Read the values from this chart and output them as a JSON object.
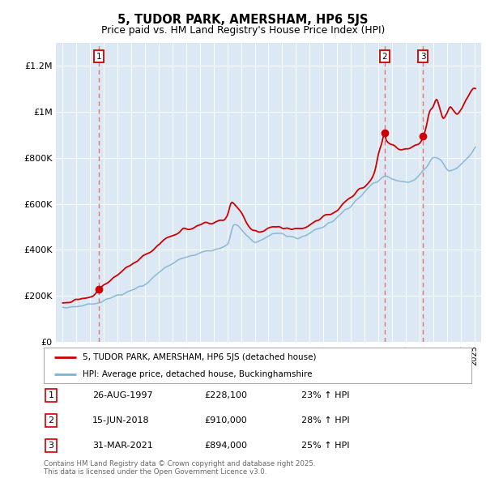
{
  "title": "5, TUDOR PARK, AMERSHAM, HP6 5JS",
  "subtitle": "Price paid vs. HM Land Registry's House Price Index (HPI)",
  "legend_line1": "5, TUDOR PARK, AMERSHAM, HP6 5JS (detached house)",
  "legend_line2": "HPI: Average price, detached house, Buckinghamshire",
  "footer": "Contains HM Land Registry data © Crown copyright and database right 2025.\nThis data is licensed under the Open Government Licence v3.0.",
  "transactions": [
    {
      "num": "1",
      "date": "26-AUG-1997",
      "price": "£228,100",
      "hpi": "23% ↑ HPI",
      "year": 1997.65,
      "price_val": 228100
    },
    {
      "num": "2",
      "date": "15-JUN-2018",
      "price": "£910,000",
      "hpi": "28% ↑ HPI",
      "year": 2018.45,
      "price_val": 910000
    },
    {
      "num": "3",
      "date": "31-MAR-2021",
      "price": "£894,000",
      "hpi": "25% ↑ HPI",
      "year": 2021.25,
      "price_val": 894000
    }
  ],
  "xlim": [
    1994.5,
    2025.5
  ],
  "ylim": [
    0,
    1300000
  ],
  "yticks": [
    0,
    200000,
    400000,
    600000,
    800000,
    1000000,
    1200000
  ],
  "ytick_labels": [
    "£0",
    "£200K",
    "£400K",
    "£600K",
    "£800K",
    "£1M",
    "£1.2M"
  ],
  "background_color": "#dce9f5",
  "red_line_color": "#cc0000",
  "blue_line_color": "#7fb3d3",
  "vline_color": "#e87070",
  "grid_color": "#ffffff",
  "marker_color": "#cc0000",
  "hpi_keypoints": [
    [
      1995.0,
      148000
    ],
    [
      1996.0,
      155000
    ],
    [
      1997.0,
      163000
    ],
    [
      1998.0,
      180000
    ],
    [
      1999.0,
      200000
    ],
    [
      2000.0,
      220000
    ],
    [
      2001.0,
      250000
    ],
    [
      2002.0,
      300000
    ],
    [
      2003.0,
      340000
    ],
    [
      2004.0,
      370000
    ],
    [
      2005.0,
      385000
    ],
    [
      2006.0,
      400000
    ],
    [
      2007.0,
      420000
    ],
    [
      2007.5,
      510000
    ],
    [
      2008.0,
      490000
    ],
    [
      2008.5,
      460000
    ],
    [
      2009.0,
      430000
    ],
    [
      2009.5,
      440000
    ],
    [
      2010.0,
      460000
    ],
    [
      2010.5,
      470000
    ],
    [
      2011.0,
      465000
    ],
    [
      2011.5,
      455000
    ],
    [
      2012.0,
      455000
    ],
    [
      2012.5,
      460000
    ],
    [
      2013.0,
      470000
    ],
    [
      2013.5,
      485000
    ],
    [
      2014.0,
      500000
    ],
    [
      2014.5,
      520000
    ],
    [
      2015.0,
      545000
    ],
    [
      2015.5,
      570000
    ],
    [
      2016.0,
      590000
    ],
    [
      2016.5,
      620000
    ],
    [
      2017.0,
      650000
    ],
    [
      2017.5,
      680000
    ],
    [
      2018.0,
      700000
    ],
    [
      2018.5,
      720000
    ],
    [
      2019.0,
      710000
    ],
    [
      2019.5,
      700000
    ],
    [
      2020.0,
      695000
    ],
    [
      2020.5,
      700000
    ],
    [
      2021.0,
      720000
    ],
    [
      2021.5,
      760000
    ],
    [
      2022.0,
      800000
    ],
    [
      2022.5,
      790000
    ],
    [
      2023.0,
      760000
    ],
    [
      2023.5,
      750000
    ],
    [
      2024.0,
      770000
    ],
    [
      2024.5,
      800000
    ],
    [
      2025.0,
      840000
    ]
  ],
  "red_keypoints": [
    [
      1995.0,
      175000
    ],
    [
      1995.5,
      178000
    ],
    [
      1996.0,
      182000
    ],
    [
      1996.5,
      190000
    ],
    [
      1997.0,
      200000
    ],
    [
      1997.65,
      228100
    ],
    [
      1998.0,
      245000
    ],
    [
      1998.5,
      265000
    ],
    [
      1999.0,
      290000
    ],
    [
      1999.5,
      315000
    ],
    [
      2000.0,
      340000
    ],
    [
      2000.5,
      360000
    ],
    [
      2001.0,
      380000
    ],
    [
      2001.5,
      400000
    ],
    [
      2002.0,
      420000
    ],
    [
      2002.5,
      445000
    ],
    [
      2003.0,
      460000
    ],
    [
      2003.5,
      475000
    ],
    [
      2004.0,
      490000
    ],
    [
      2004.5,
      500000
    ],
    [
      2005.0,
      510000
    ],
    [
      2005.5,
      515000
    ],
    [
      2006.0,
      520000
    ],
    [
      2006.5,
      530000
    ],
    [
      2007.0,
      545000
    ],
    [
      2007.33,
      600000
    ],
    [
      2007.67,
      590000
    ],
    [
      2008.0,
      560000
    ],
    [
      2008.5,
      510000
    ],
    [
      2009.0,
      470000
    ],
    [
      2009.5,
      480000
    ],
    [
      2010.0,
      490000
    ],
    [
      2010.5,
      500000
    ],
    [
      2011.0,
      495000
    ],
    [
      2011.5,
      490000
    ],
    [
      2012.0,
      490000
    ],
    [
      2012.5,
      500000
    ],
    [
      2013.0,
      510000
    ],
    [
      2013.5,
      525000
    ],
    [
      2014.0,
      540000
    ],
    [
      2014.5,
      560000
    ],
    [
      2015.0,
      580000
    ],
    [
      2015.5,
      605000
    ],
    [
      2016.0,
      630000
    ],
    [
      2016.5,
      655000
    ],
    [
      2017.0,
      680000
    ],
    [
      2017.5,
      720000
    ],
    [
      2017.75,
      750000
    ],
    [
      2018.0,
      810000
    ],
    [
      2018.25,
      860000
    ],
    [
      2018.45,
      910000
    ],
    [
      2018.6,
      880000
    ],
    [
      2019.0,
      860000
    ],
    [
      2019.5,
      840000
    ],
    [
      2020.0,
      840000
    ],
    [
      2020.5,
      850000
    ],
    [
      2021.0,
      870000
    ],
    [
      2021.25,
      894000
    ],
    [
      2021.5,
      940000
    ],
    [
      2021.75,
      1000000
    ],
    [
      2022.0,
      1020000
    ],
    [
      2022.25,
      1050000
    ],
    [
      2022.5,
      1010000
    ],
    [
      2022.75,
      970000
    ],
    [
      2023.0,
      990000
    ],
    [
      2023.25,
      1020000
    ],
    [
      2023.5,
      1000000
    ],
    [
      2023.75,
      980000
    ],
    [
      2024.0,
      1000000
    ],
    [
      2024.25,
      1030000
    ],
    [
      2024.5,
      1060000
    ],
    [
      2024.75,
      1090000
    ],
    [
      2025.0,
      1100000
    ]
  ]
}
